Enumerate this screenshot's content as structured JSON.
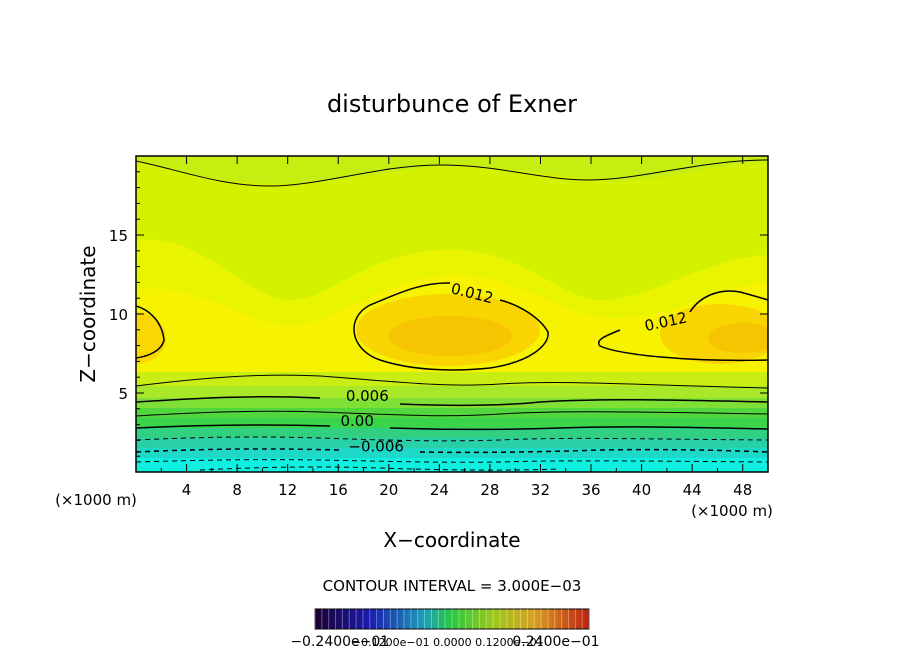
{
  "chart_data": {
    "type": "contour",
    "title": "disturbunce of Exner",
    "xlabel": "X−coordinate",
    "ylabel": "Z−coordinate",
    "x_unit_left": "(×1000 m)",
    "x_unit_right": "(×1000 m)",
    "xlim": [
      0,
      50
    ],
    "ylim": [
      0,
      20
    ],
    "x_ticks": [
      4,
      8,
      12,
      16,
      20,
      24,
      28,
      32,
      36,
      40,
      44,
      48
    ],
    "x_tick_labels": [
      "4",
      "8",
      "12",
      "16",
      "20",
      "24",
      "28",
      "32",
      "36",
      "40",
      "44",
      "48"
    ],
    "y_ticks": [
      5,
      10,
      15
    ],
    "y_tick_labels": [
      "5",
      "10",
      "15"
    ],
    "contour_interval_text": "CONTOUR INTERVAL = 3.000E−03",
    "contour_labels": [
      {
        "text": "0.012",
        "x": 26.5,
        "y": 11.0,
        "angle": 14
      },
      {
        "text": "0.012",
        "x": 42.0,
        "y": 9.2,
        "angle": -12
      },
      {
        "text": "0.006",
        "x": 18.3,
        "y": 4.5,
        "angle": 0
      },
      {
        "text": "0.00",
        "x": 17.5,
        "y": 2.9,
        "angle": 0
      },
      {
        "text": "−0.006",
        "x": 19.0,
        "y": 1.3,
        "angle": 0
      }
    ],
    "colorbar": {
      "min_label": "−0.2400e−01",
      "max_label": "0.2400e−01",
      "labels_text": "−0.2400e−01",
      "overlap_text": "−0.1200e−01  0.0000  0.1200e−01",
      "end_text": "0.2400e−01"
    }
  }
}
